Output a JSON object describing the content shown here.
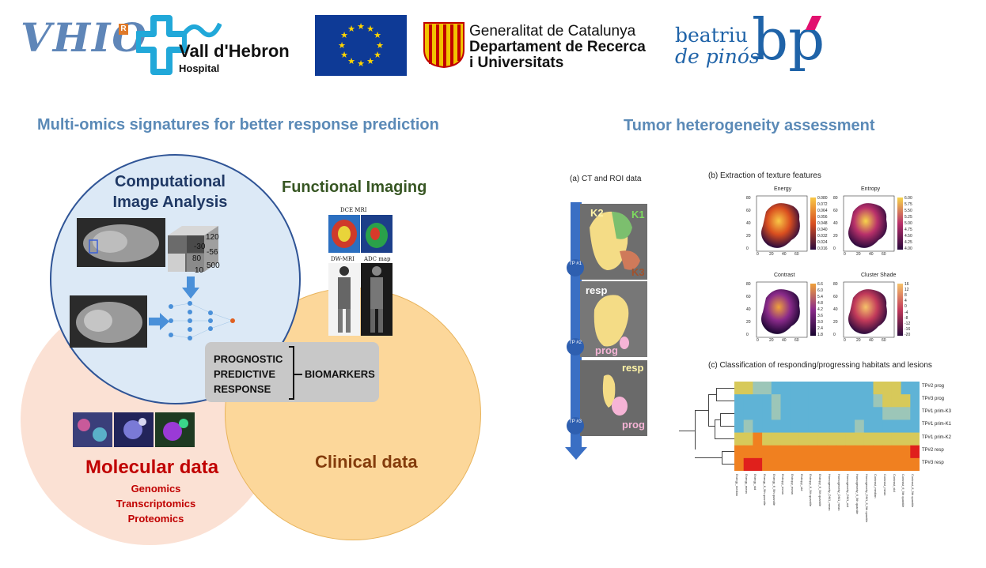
{
  "logos": {
    "vhio": "VHIO",
    "vhio_r": "R",
    "vall_hebron": "Vall d'Hebron",
    "vall_hebron_sub": "Hospital",
    "generalitat_l1": "Generalitat de Catalunya",
    "generalitat_l2": "Departament de Recerca",
    "generalitat_l3": "i Universitats",
    "bp_l1": "beatriu",
    "bp_l2": "de pinós",
    "bp_mark": "bp"
  },
  "left": {
    "title": "Multi-omics signatures for better response prediction",
    "computational": "Computational Image Analysis",
    "functional": "Functional Imaging",
    "dce_label": "DCE MRI",
    "dw_label": "DW-MRI",
    "adc_label": "ADC map",
    "cube_values": [
      "120",
      "-30",
      "-56",
      "80",
      "10",
      "500"
    ],
    "biomarker_left": [
      "PROGNOSTIC",
      "PREDICTIVE",
      "RESPONSE"
    ],
    "biomarker_right": "BIOMARKERS",
    "molecular": "Molecular data",
    "molecular_items": [
      "Genomics",
      "Transcriptomics",
      "Proteomics"
    ],
    "clinical": "Clinical data"
  },
  "right": {
    "title": "Tumor heterogeneity assessment",
    "panel_a": "(a) CT and ROI data",
    "panel_b": "(b) Extraction of texture features",
    "panel_c": "(c) Classification of responding/progressing habitats and lesions",
    "tp": [
      "TP #1",
      "TP #2",
      "TP #3"
    ],
    "scan_labels": {
      "s1": [
        "K2",
        "K1",
        "K3"
      ],
      "s2": [
        "resp",
        "prog"
      ],
      "s3": [
        "resp",
        "prog"
      ]
    },
    "maps": [
      {
        "title": "Energy",
        "scale": [
          "0.080",
          "0.072",
          "0.064",
          "0.056",
          "0.048",
          "0.040",
          "0.032",
          "0.024",
          "0.016"
        ]
      },
      {
        "title": "Entropy",
        "scale": [
          "6.00",
          "5.75",
          "5.50",
          "5.25",
          "5.00",
          "4.75",
          "4.50",
          "4.25",
          "4.00"
        ]
      },
      {
        "title": "Contrast",
        "scale": [
          "6.6",
          "6.0",
          "5.4",
          "4.8",
          "4.2",
          "3.6",
          "3.0",
          "2.4",
          "1.8"
        ]
      },
      {
        "title": "Cluster Shade",
        "scale": [
          "16",
          "12",
          "8",
          "4",
          "0",
          "-4",
          "-8",
          "-12",
          "-16",
          "-20"
        ]
      }
    ],
    "map_axis_y": [
      "80",
      "60",
      "40",
      "20",
      "0"
    ],
    "map_axis_x": [
      "0",
      "20",
      "40",
      "60"
    ],
    "heatmap_rows": [
      "TP#2 prog",
      "TP#3 prog",
      "TP#1 prim-K3",
      "TP#1 prim-K1",
      "TP#1 prim-K2",
      "TP#2 resp",
      "TP#3 resp"
    ],
    "heatmap_cols": [
      "Energy_median",
      "Energy_mean",
      "Energy_std",
      "Energy_fl_5th quantile",
      "Energy_fl_5th quantile",
      "Entropy_mean",
      "Entropy_mean",
      "Entropy_std",
      "Entropy_fl_5th quantile",
      "Entropy_fl_5th quantile",
      "Homogeneity_DM1_mean",
      "Homogeneity_DM1_mean",
      "Homogeneity_DM1_std",
      "Homogeneity_fl_5th quantile",
      "Homogeneity_DM1_fl_5th quantile",
      "Contrast_median",
      "Contrast_mean",
      "Contrast_std",
      "Contrast_fl_5th quantile",
      "Contrast_fl_5th quantile"
    ],
    "heatmap_colors": {
      "blue": "#5fb3d6",
      "teal": "#9cc6b8",
      "yellow": "#d7c95a",
      "orange": "#f08020",
      "red": "#e0201c"
    }
  }
}
